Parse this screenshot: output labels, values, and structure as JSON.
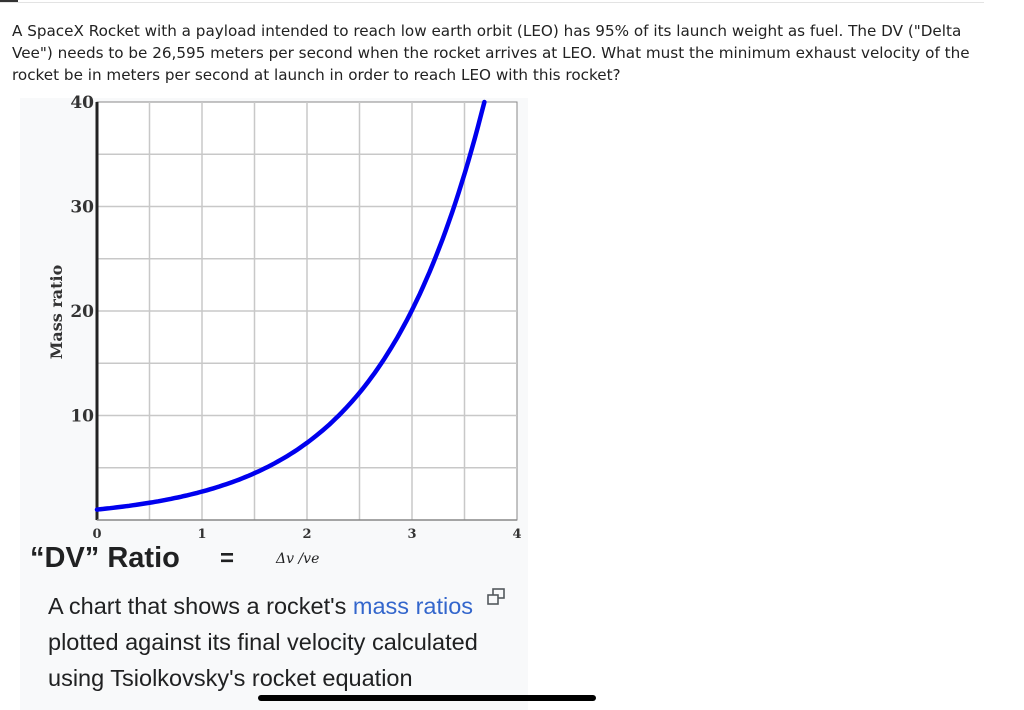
{
  "question": {
    "text": "A SpaceX Rocket with a payload intended to reach low earth orbit (LEO) has 95% of its launch weight as fuel. The DV (\"Delta Vee\") needs to be 26,595 meters per second when the rocket arrives at LEO.  What must the minimum exhaust velocity of the rocket be in meters per second at launch in order to reach LEO with this rocket?"
  },
  "chart_data": {
    "type": "line",
    "ylabel": "Mass ratio",
    "xlabel": "",
    "xlim": [
      0,
      4
    ],
    "ylim": [
      0,
      40
    ],
    "x_ticks": [
      "0",
      "1",
      "2",
      "3",
      "4"
    ],
    "y_ticks": [
      "10",
      "20",
      "30",
      "40"
    ],
    "grid": true,
    "line_color": "#0000ee",
    "series": [
      {
        "function": "exp",
        "x": [
          0,
          0.5,
          1,
          1.5,
          2,
          2.5,
          3,
          3.5,
          3.69
        ],
        "y": [
          1,
          1.65,
          2.72,
          4.48,
          7.39,
          12.18,
          20.09,
          33.12,
          40
        ]
      }
    ]
  },
  "formula": {
    "label": "“DV” Ratio",
    "equals": "=",
    "expression": "Δv /ve"
  },
  "caption": {
    "pre": "A chart that shows a rocket's ",
    "link": "mass ratios",
    "post": " plotted against its final velocity calculated using Tsiolkovsky's rocket equation"
  },
  "icons": {
    "enlarge": "enlarge-icon"
  }
}
